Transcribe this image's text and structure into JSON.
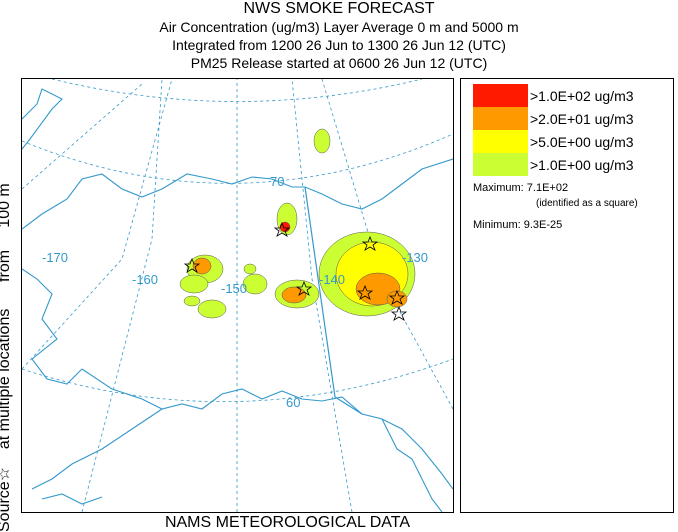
{
  "header": {
    "title": "NWS SMOKE FORECAST",
    "line2": "Air Concentration (ug/m3) Layer Average     0 m and  5000 m",
    "line3": "Integrated from 1200 26 Jun to 1300 26 Jun 12 (UTC)",
    "line4": "PM25 Release started at 0600 26 Jun 12 (UTC)"
  },
  "side_label": {
    "source": "Source☆",
    "at_multiple": "at multiple locations",
    "from": "from",
    "height": "100 m"
  },
  "footer": "NAMS METEOROLOGICAL DATA",
  "map": {
    "grid_labels": [
      "-170",
      "-160",
      "-150",
      "-140",
      "-130",
      "70",
      "60"
    ],
    "colors": {
      "coast": "#3399cc",
      "grid": "#3399cc"
    }
  },
  "legend": {
    "items": [
      {
        "label": ">1.0E+02 ug/m3",
        "color": "#ff1a00"
      },
      {
        "label": ">2.0E+01 ug/m3",
        "color": "#ff9900"
      },
      {
        "label": ">5.0E+00 ug/m3",
        "color": "#ffff00"
      },
      {
        "label": ">1.0E+00 ug/m3",
        "color": "#ccff33"
      }
    ],
    "maximum": "Maximum: 7.1E+02",
    "identified": "(identified as a square)",
    "minimum": "Minimum: 9.3E-25"
  }
}
